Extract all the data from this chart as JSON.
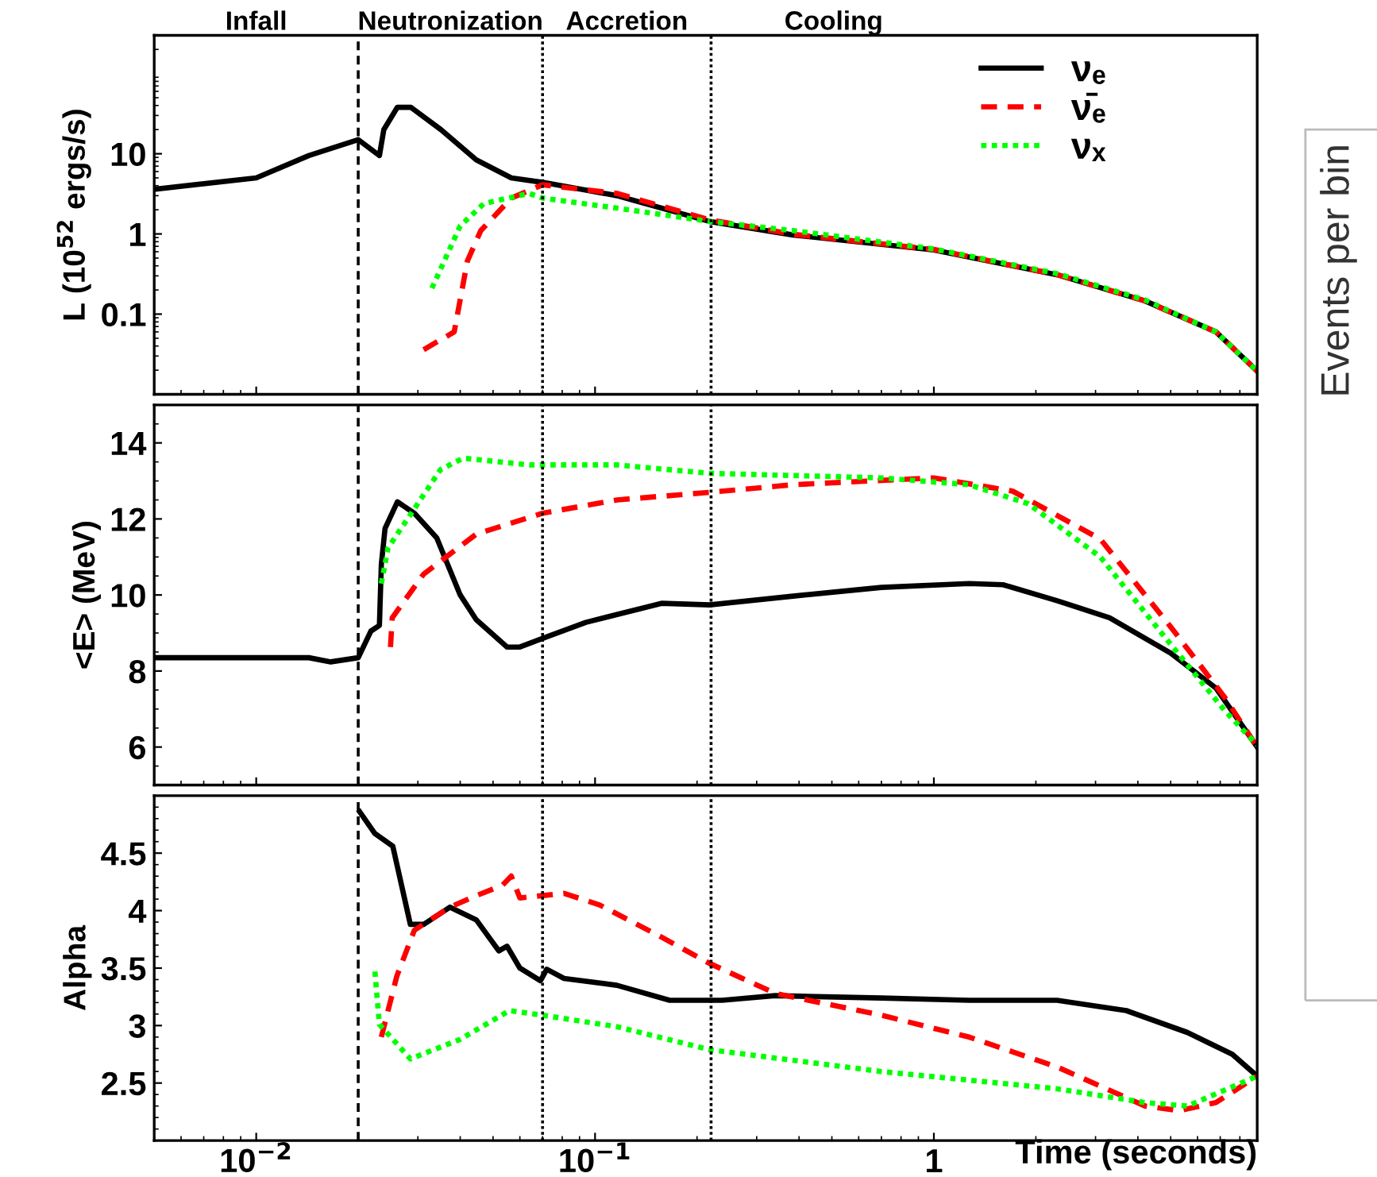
{
  "chart_data": [
    {
      "type": "line",
      "ylabel": "L (10$^{52}$ ergs/s)",
      "log": "xy",
      "xlim": [
        0.005,
        9
      ],
      "ylim": [
        0.01,
        300
      ],
      "yticks": [
        0.1,
        1,
        10
      ],
      "tick_labels": "y",
      "grid": false,
      "legend": "top right",
      "annotations": [
        "Infall",
        "Neutronization",
        "Accretion",
        "Cooling",
        "Events per bin"
      ],
      "ref_lines": [
        {
          "axis": "x",
          "value": 0.02,
          "line_style": "dashed",
          "color": "#000000"
        },
        {
          "axis": "x",
          "value": 0.07,
          "line_style": "dotted",
          "color": "#000000"
        },
        {
          "axis": "x",
          "value": 0.22,
          "line_style": "dotted",
          "color": "#000000"
        }
      ],
      "series": [
        {
          "name": "νₑ",
          "color": "#000000",
          "line_style": "solid",
          "x": [
            0.005,
            0.01,
            0.0143,
            0.02,
            0.0231,
            0.0238,
            0.0261,
            0.0286,
            0.0351,
            0.0446,
            0.0566,
            0.07,
            0.116,
            0.218,
            0.384,
            1,
            2.31,
            4.2,
            6.8,
            9
          ],
          "values": [
            3.6,
            5.0,
            9.5,
            15,
            9.5,
            20,
            38,
            38,
            20,
            8.4,
            5.0,
            4.4,
            3.0,
            1.43,
            0.97,
            0.63,
            0.31,
            0.146,
            0.06,
            0.0195
          ]
        },
        {
          "name": "ν̄ₑ",
          "color": "#ff0000",
          "line_style": "dashed",
          "x": [
            0.0312,
            0.0384,
            0.042,
            0.046,
            0.0566,
            0.07,
            0.116,
            0.218,
            0.384,
            1,
            2.31,
            4.2,
            6.8,
            9
          ],
          "values": [
            0.036,
            0.06,
            0.46,
            1.1,
            2.8,
            4.1,
            3.2,
            1.5,
            0.99,
            0.64,
            0.31,
            0.146,
            0.06,
            0.0195
          ]
        },
        {
          "name": "νₓ",
          "color": "#00ff00",
          "line_style": "dotted",
          "x": [
            0.033,
            0.04,
            0.047,
            0.064,
            0.07,
            0.116,
            0.218,
            0.384,
            1,
            2.31,
            4.2,
            6.8,
            9
          ],
          "values": [
            0.21,
            1.26,
            2.4,
            3.2,
            2.8,
            2.1,
            1.43,
            1.1,
            0.65,
            0.32,
            0.15,
            0.06,
            0.0195
          ]
        }
      ]
    },
    {
      "type": "line",
      "ylabel": "<E> (MeV)",
      "log": "x",
      "xlim": [
        0.005,
        9
      ],
      "ylim": [
        5,
        15
      ],
      "yticks": [
        6,
        8,
        10,
        12,
        14
      ],
      "tick_labels": "y",
      "grid": false,
      "ref_lines": [
        {
          "axis": "x",
          "value": 0.02,
          "line_style": "dashed",
          "color": "#000000"
        },
        {
          "axis": "x",
          "value": 0.07,
          "line_style": "dotted",
          "color": "#000000"
        },
        {
          "axis": "x",
          "value": 0.22,
          "line_style": "dotted",
          "color": "#000000"
        }
      ],
      "series": [
        {
          "color": "#000000",
          "line_style": "solid",
          "x": [
            0.005,
            0.0143,
            0.0166,
            0.02,
            0.0218,
            0.0231,
            0.0234,
            0.024,
            0.0261,
            0.0293,
            0.0341,
            0.04,
            0.0446,
            0.055,
            0.06,
            0.072,
            0.094,
            0.157,
            0.218,
            0.384,
            0.7,
            1.27,
            1.6,
            2.31,
            3.3,
            5.0,
            6.8,
            9
          ],
          "values": [
            8.35,
            8.35,
            8.24,
            8.35,
            9.05,
            9.2,
            10.8,
            11.75,
            12.45,
            12.15,
            11.5,
            10.0,
            9.35,
            8.63,
            8.63,
            8.9,
            9.28,
            9.78,
            9.74,
            9.97,
            10.2,
            10.3,
            10.27,
            9.85,
            9.4,
            8.47,
            7.55,
            6.0
          ]
        },
        {
          "color": "#ff0000",
          "line_style": "dashed",
          "x": [
            0.0249,
            0.0252,
            0.0312,
            0.0446,
            0.07,
            0.116,
            0.218,
            0.384,
            1,
            1.71,
            3.1,
            5.0,
            7.2,
            9
          ],
          "values": [
            8.63,
            9.4,
            10.55,
            11.6,
            12.15,
            12.5,
            12.7,
            12.9,
            13.08,
            12.73,
            11.47,
            9.16,
            7.32,
            6.0
          ]
        },
        {
          "color": "#00ff00",
          "line_style": "dotted",
          "x": [
            0.0234,
            0.0245,
            0.0293,
            0.035,
            0.0408,
            0.064,
            0.116,
            0.218,
            0.7,
            1.27,
            1.9,
            3.1,
            5.0,
            7.2,
            9
          ],
          "values": [
            10.3,
            11.24,
            12.27,
            13.3,
            13.6,
            13.42,
            13.42,
            13.2,
            13.08,
            12.9,
            12.4,
            11.0,
            8.7,
            6.97,
            6.05
          ]
        }
      ]
    },
    {
      "type": "line",
      "ylabel": "Alpha",
      "xlabel": "Time (seconds)",
      "log": "x",
      "xlim": [
        0.005,
        9
      ],
      "ylim": [
        2,
        5
      ],
      "xticks": [
        {
          "value": 0.01,
          "label": "10$^{−2}$"
        },
        {
          "value": 0.1,
          "label": "10$^{−1}$"
        },
        1
      ],
      "yticks": [
        2.5,
        3,
        3.5,
        4,
        4.5
      ],
      "grid": false,
      "ref_lines": [
        {
          "axis": "x",
          "value": 0.02,
          "line_style": "dashed",
          "color": "#000000"
        },
        {
          "axis": "x",
          "value": 0.07,
          "line_style": "dotted",
          "color": "#000000"
        },
        {
          "axis": "x",
          "value": 0.22,
          "line_style": "dotted",
          "color": "#000000"
        }
      ],
      "series": [
        {
          "color": "#000000",
          "line_style": "solid",
          "x": [
            0.0202,
            0.0224,
            0.0253,
            0.0285,
            0.0312,
            0.0373,
            0.0446,
            0.052,
            0.055,
            0.06,
            0.069,
            0.072,
            0.081,
            0.116,
            0.166,
            0.237,
            0.34,
            0.7,
            1.27,
            2.31,
            3.7,
            5.6,
            7.6,
            9
          ],
          "values": [
            4.86,
            4.67,
            4.56,
            3.88,
            3.88,
            4.03,
            3.92,
            3.65,
            3.69,
            3.5,
            3.39,
            3.49,
            3.41,
            3.35,
            3.22,
            3.22,
            3.26,
            3.24,
            3.22,
            3.22,
            3.13,
            2.94,
            2.75,
            2.56
          ]
        },
        {
          "color": "#ff0000",
          "line_style": "dashed",
          "x": [
            0.0234,
            0.026,
            0.0293,
            0.0373,
            0.0446,
            0.0533,
            0.0566,
            0.06,
            0.081,
            0.103,
            0.157,
            0.218,
            0.34,
            0.7,
            1.27,
            2.31,
            4.2,
            5.3,
            6.8,
            9
          ],
          "values": [
            2.9,
            3.43,
            3.83,
            4.03,
            4.13,
            4.22,
            4.3,
            4.11,
            4.15,
            4.05,
            3.77,
            3.54,
            3.28,
            3.09,
            2.9,
            2.64,
            2.3,
            2.26,
            2.33,
            2.56
          ]
        },
        {
          "color": "#00ff00",
          "line_style": "dotted",
          "x": [
            0.0224,
            0.0231,
            0.0285,
            0.04,
            0.0559,
            0.07,
            0.116,
            0.218,
            0.7,
            2.31,
            4.2,
            5.6,
            9
          ],
          "values": [
            3.47,
            3.01,
            2.71,
            2.88,
            3.13,
            3.09,
            2.99,
            2.79,
            2.6,
            2.45,
            2.33,
            2.3,
            2.56
          ]
        }
      ]
    }
  ]
}
